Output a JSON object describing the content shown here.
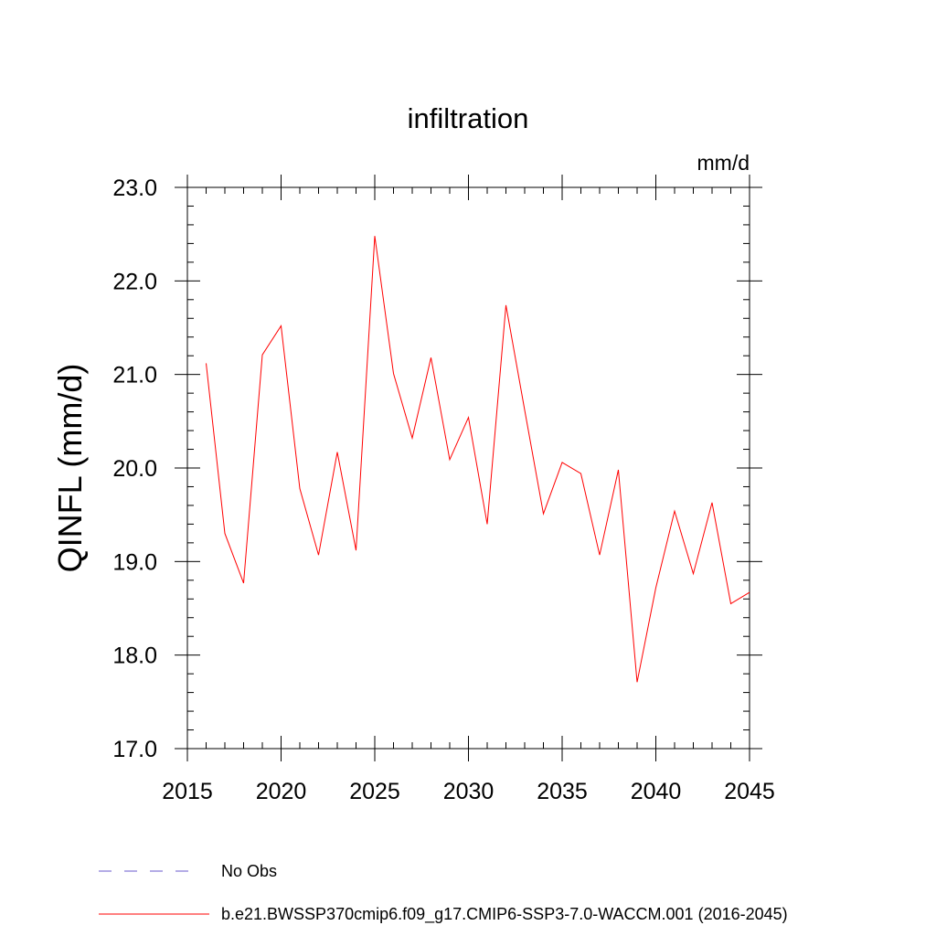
{
  "chart_data": {
    "type": "line",
    "title": "infiltration",
    "units": "mm/d",
    "xlabel": "",
    "ylabel": "QINFL  (mm/d)",
    "xlim": [
      2015,
      2045
    ],
    "ylim": [
      17.0,
      23.0
    ],
    "x_ticks": [
      "2015",
      "2020",
      "2025",
      "2030",
      "2035",
      "2040",
      "2045"
    ],
    "y_ticks": [
      "17.0",
      "18.0",
      "19.0",
      "20.0",
      "21.0",
      "22.0",
      "23.0"
    ],
    "grid": false,
    "legend_position": "bottom",
    "series": [
      {
        "name": "b.e21.BWSSP370cmip6.f09_g17.CMIP6-SSP3-7.0-WACCM.001 (2016-2045)",
        "color": "#ff0000",
        "style": "solid",
        "x": [
          2016,
          2017,
          2018,
          2019,
          2020,
          2021,
          2022,
          2023,
          2024,
          2025,
          2026,
          2027,
          2028,
          2029,
          2030,
          2031,
          2032,
          2033,
          2034,
          2035,
          2036,
          2037,
          2038,
          2039,
          2040,
          2041,
          2042,
          2043,
          2044,
          2045
        ],
        "values": [
          21.12,
          19.3,
          18.77,
          21.21,
          21.52,
          19.78,
          19.07,
          20.17,
          19.12,
          22.48,
          21.01,
          20.32,
          21.18,
          20.09,
          20.54,
          19.4,
          21.74,
          20.62,
          19.51,
          20.06,
          19.94,
          19.07,
          19.98,
          17.71,
          18.72,
          19.54,
          18.87,
          19.63,
          18.55,
          18.67
        ]
      }
    ],
    "legend": [
      {
        "label": "No Obs",
        "color": "#6a5acd",
        "style": "dashed"
      },
      {
        "label": "b.e21.BWSSP370cmip6.f09_g17.CMIP6-SSP3-7.0-WACCM.001 (2016-2045)",
        "color": "#ff0000",
        "style": "solid"
      }
    ]
  }
}
